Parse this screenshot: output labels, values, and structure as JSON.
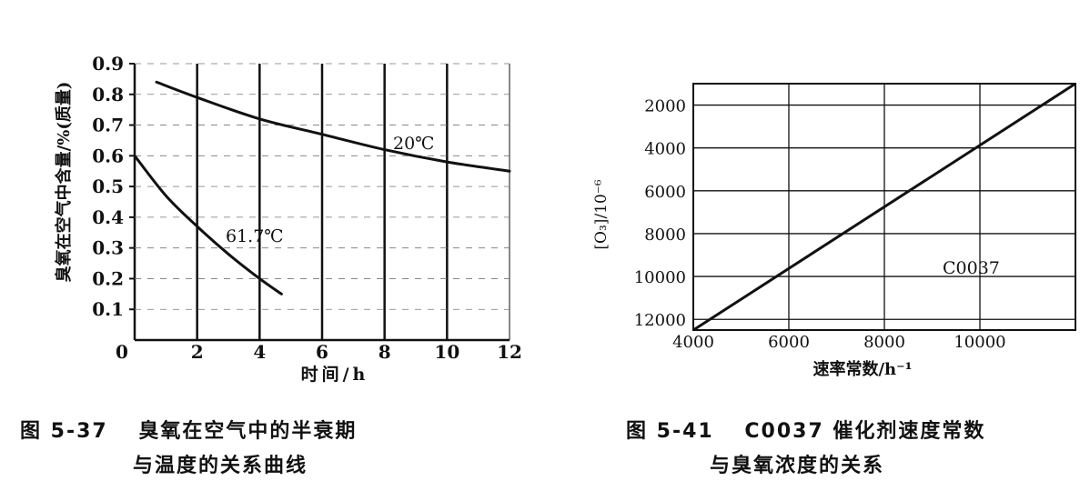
{
  "chart_data": [
    {
      "type": "line",
      "caption": [
        "图 5-37　 臭氧在空气中的半衰期",
        "与温度的关系曲线"
      ],
      "xlabel": "时间/h",
      "ylabel": "臭氧在空气中含量/%(质量)",
      "xlim": [
        0,
        12
      ],
      "ylim": [
        0,
        0.9
      ],
      "x_ticks": [
        "0",
        "2",
        "4",
        "6",
        "8",
        "10",
        "12"
      ],
      "y_ticks": [
        "0.1",
        "0.2",
        "0.3",
        "0.4",
        "0.5",
        "0.6",
        "0.7",
        "0.8",
        "0.9"
      ],
      "grid": true,
      "series": [
        {
          "name": "20℃",
          "x": [
            0.7,
            2,
            4,
            6,
            8,
            10,
            12
          ],
          "y": [
            0.84,
            0.79,
            0.72,
            0.67,
            0.62,
            0.58,
            0.55
          ]
        },
        {
          "name": "61.7℃",
          "x": [
            0,
            1,
            2,
            3,
            4,
            4.7
          ],
          "y": [
            0.6,
            0.47,
            0.37,
            0.28,
            0.2,
            0.15
          ]
        }
      ]
    },
    {
      "type": "line",
      "caption": [
        "图 5-41　 C0037 催化剂速度常数",
        "与臭氧浓度的关系"
      ],
      "xlabel": "速率常数/h⁻¹",
      "ylabel": "[O₃]/10⁻⁶",
      "xlim": [
        4000,
        12000
      ],
      "ylim": [
        12500,
        1000
      ],
      "x_ticks": [
        "4000",
        "6000",
        "8000",
        "10000"
      ],
      "y_ticks": [
        "2000",
        "4000",
        "6000",
        "8000",
        "10000",
        "12000"
      ],
      "grid": true,
      "series": [
        {
          "name": "C0037",
          "x": [
            4000,
            12000
          ],
          "y": [
            12500,
            1000
          ]
        }
      ]
    }
  ]
}
